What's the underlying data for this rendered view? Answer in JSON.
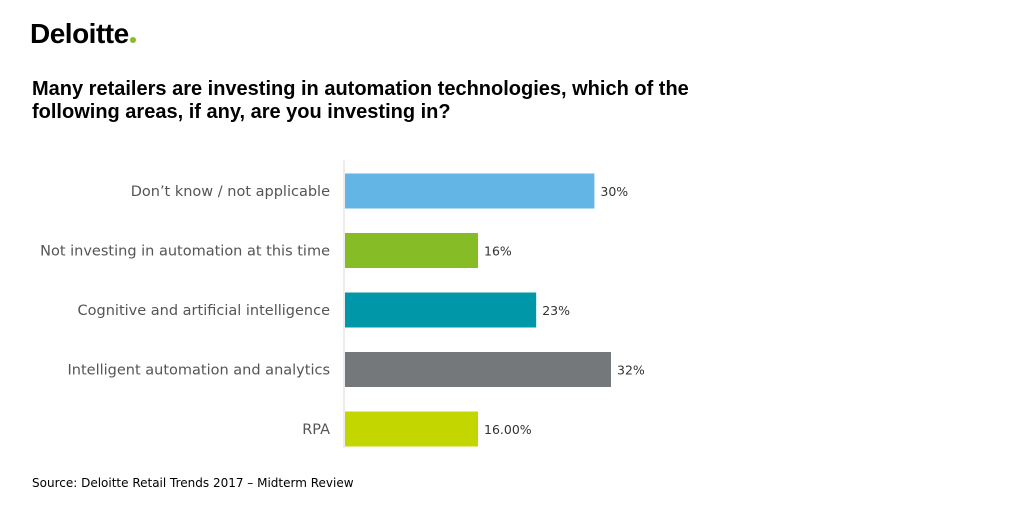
{
  "brand": {
    "name": "Deloitte",
    "dot": ".",
    "dot_color": "#86BC25"
  },
  "chart_data": {
    "type": "bar",
    "orientation": "horizontal",
    "title": "Many retailers are investing in automation technologies, which of the following areas, if any, are you investing in?",
    "xlabel": "",
    "ylabel": "",
    "xlim": [
      0,
      32
    ],
    "grid": false,
    "categories": [
      "Don’t know / not applicable",
      "Not investing in automation at this time",
      "Cognitive and artificial intelligence",
      "Intelligent automation and analytics",
      "RPA"
    ],
    "values": [
      30,
      16,
      23,
      32,
      16
    ],
    "data_labels": [
      "30%",
      "16%",
      "23%",
      "32%",
      "16.00%"
    ],
    "colors": [
      "#62B5E5",
      "#86BC25",
      "#0097A9",
      "#75787B",
      "#C4D600"
    ]
  },
  "footer": {
    "source": "Source: Deloitte Retail Trends 2017 – Midterm Review"
  }
}
